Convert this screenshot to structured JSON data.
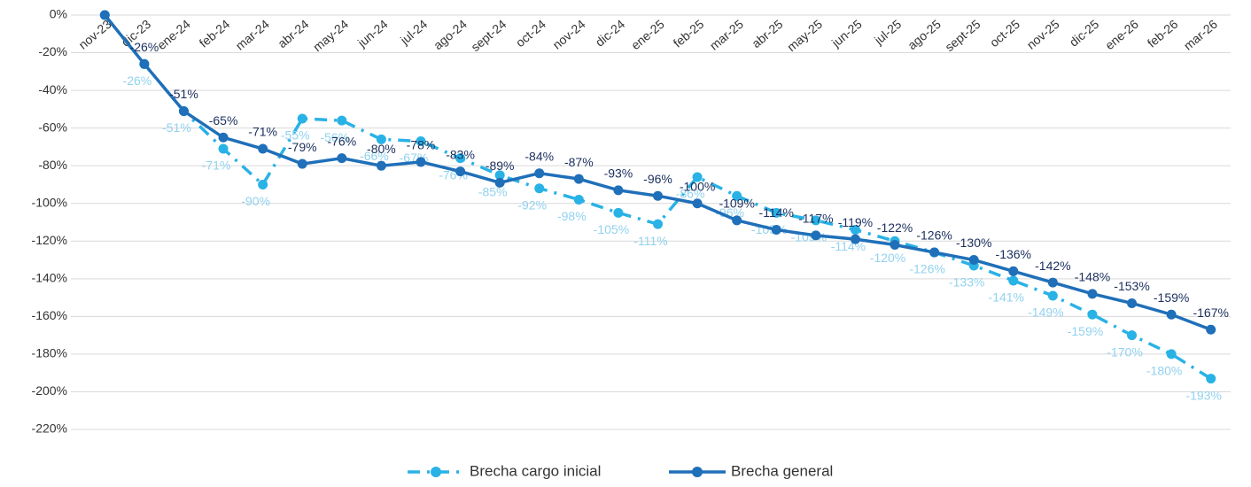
{
  "chart_data": {
    "type": "line",
    "categories": [
      "nov-23",
      "dic-23",
      "ene-24",
      "feb-24",
      "mar-24",
      "abr-24",
      "may-24",
      "jun-24",
      "jul-24",
      "ago-24",
      "sept-24",
      "oct-24",
      "nov-24",
      "dic-24",
      "ene-25",
      "feb-25",
      "mar-25",
      "abr-25",
      "may-25",
      "jun-25",
      "jul-25",
      "ago-25",
      "sept-25",
      "oct-25",
      "nov-25",
      "dic-25",
      "ene-26",
      "feb-26",
      "mar-26"
    ],
    "series": [
      {
        "name": "Brecha cargo inicial",
        "color": "#29b2e6",
        "label_color": "#92d2ef",
        "dashed": true,
        "values": [
          0,
          -26,
          -51,
          -71,
          -90,
          -55,
          -56,
          -66,
          -67,
          -76,
          -85,
          -92,
          -98,
          -105,
          -111,
          -86,
          -96,
          -105,
          -109,
          -114,
          -120,
          -126,
          -133,
          -141,
          -149,
          -159,
          -170,
          -180,
          -193
        ],
        "value_labels": [
          null,
          "-26%",
          "-51%",
          "-71%",
          "-90%",
          "-55%",
          "-56%",
          "-66%",
          "-67%",
          "-76%",
          "-85%",
          "-92%",
          "-98%",
          "-105%",
          "-111%",
          "-86%",
          "-96%",
          "-105%",
          "-109%",
          "-114%",
          "-120%",
          "-126%",
          "-133%",
          "-141%",
          "-149%",
          "-159%",
          "-170%",
          "-180%",
          "-193%"
        ]
      },
      {
        "name": "Brecha general",
        "color": "#1f6fb9",
        "label_color": "#1b2f5e",
        "dashed": false,
        "values": [
          0,
          -26,
          -51,
          -65,
          -71,
          -79,
          -76,
          -80,
          -78,
          -83,
          -89,
          -84,
          -87,
          -93,
          -96,
          -100,
          -109,
          -114,
          -117,
          -119,
          -122,
          -126,
          -130,
          -136,
          -142,
          -148,
          -153,
          -159,
          -167
        ],
        "value_labels": [
          null,
          "-26%",
          "-51%",
          "-65%",
          "-71%",
          "-79%",
          "-76%",
          "-80%",
          "-78%",
          "-83%",
          "-89%",
          "-84%",
          "-87%",
          "-93%",
          "-96%",
          "-100%",
          "-109%",
          "-114%",
          "-117%",
          "-119%",
          "-122%",
          "-126%",
          "-130%",
          "-136%",
          "-142%",
          "-148%",
          "-153%",
          "-159%",
          "-167%"
        ]
      }
    ],
    "ylim": [
      -220,
      0
    ],
    "yticks": [
      {
        "value": 0,
        "label": "0%"
      },
      {
        "value": -20,
        "label": "-20%"
      },
      {
        "value": -40,
        "label": "-40%"
      },
      {
        "value": -60,
        "label": "-60%"
      },
      {
        "value": -80,
        "label": "-80%"
      },
      {
        "value": -100,
        "label": "-100%"
      },
      {
        "value": -120,
        "label": "-120%"
      },
      {
        "value": -140,
        "label": "-140%"
      },
      {
        "value": -160,
        "label": "-160%"
      },
      {
        "value": -180,
        "label": "-180%"
      },
      {
        "value": -200,
        "label": "-200%"
      },
      {
        "value": -220,
        "label": "-220%"
      }
    ],
    "grid": true,
    "legend": "bottom"
  }
}
